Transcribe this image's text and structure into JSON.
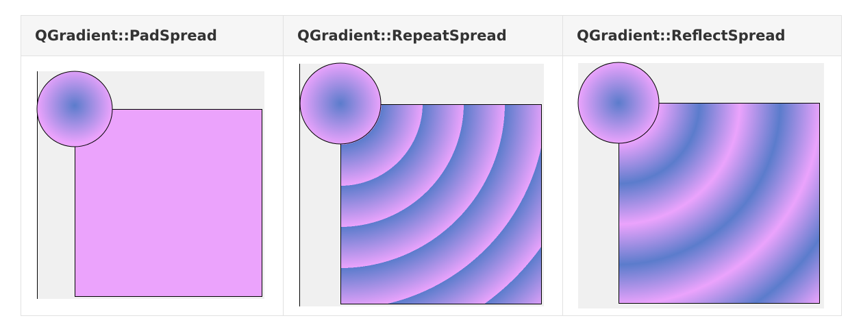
{
  "table": {
    "columns": [
      {
        "label": "QGradient::PadSpread"
      },
      {
        "label": "QGradient::RepeatSpread"
      },
      {
        "label": "QGradient::ReflectSpread"
      }
    ]
  },
  "colors": {
    "gradient_center": "#5b7ccc",
    "gradient_outer": "#eba3fc",
    "canvas_bg": "#f0f0f0",
    "header_bg": "#f6f6f6",
    "border": "#e1e1e1"
  }
}
